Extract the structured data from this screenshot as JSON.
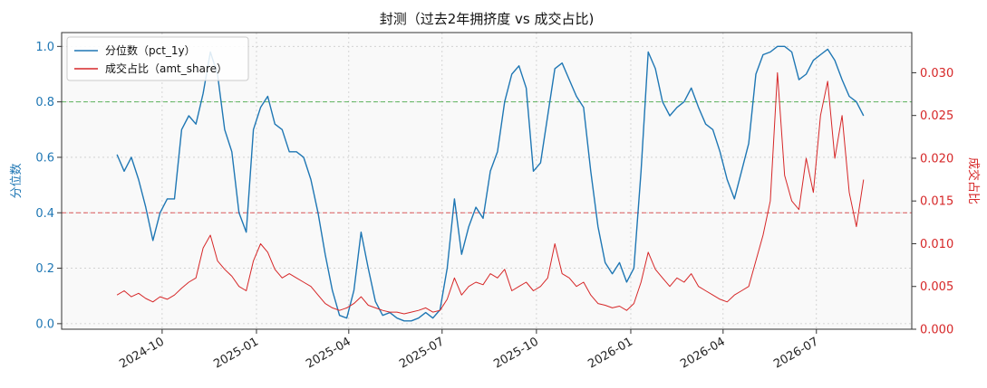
{
  "chart_data": {
    "type": "line",
    "title": "封测（过去2年拥挤度 vs 成交占比)",
    "ylabel": "分位数",
    "ylabel_right": "成交占比",
    "ylim": [
      -0.02,
      1.05
    ],
    "ylim_right": [
      0.0,
      0.0347
    ],
    "yticks": [
      0.0,
      0.2,
      0.4,
      0.6,
      0.8,
      1.0
    ],
    "yticks_right": [
      0.0,
      0.005,
      0.01,
      0.015,
      0.02,
      0.025,
      0.03
    ],
    "x_ticks": [
      "2024-10",
      "2025-01",
      "2025-04",
      "2025-07",
      "2025-10",
      "2026-01",
      "2026-04",
      "2026-07"
    ],
    "grid": true,
    "legend": "top-left",
    "hlines": [
      {
        "y": 0.8,
        "axis": "left",
        "color": "#2ca02c",
        "style": "dashed"
      },
      {
        "y": 0.4,
        "axis": "left",
        "color": "#d62728",
        "style": "dashed"
      }
    ],
    "colors": {
      "pct": "#1f77b4",
      "amt": "#d62728",
      "plot_bg": "#f9f9f9"
    },
    "series": [
      {
        "name": "分位数（pct_1y）",
        "axis": "left",
        "dates": [
          "2024-08-18",
          "2024-08-25",
          "2024-09-01",
          "2024-09-08",
          "2024-09-15",
          "2024-09-22",
          "2024-09-29",
          "2024-10-06",
          "2024-10-13",
          "2024-10-20",
          "2024-10-27",
          "2024-11-03",
          "2024-11-10",
          "2024-11-17",
          "2024-11-24",
          "2024-12-01",
          "2024-12-08",
          "2024-12-15",
          "2024-12-22",
          "2024-12-29",
          "2025-01-05",
          "2025-01-12",
          "2025-01-19",
          "2025-01-26",
          "2025-02-02",
          "2025-02-09",
          "2025-02-16",
          "2025-02-23",
          "2025-03-02",
          "2025-03-09",
          "2025-03-16",
          "2025-03-23",
          "2025-03-30",
          "2025-04-06",
          "2025-04-13",
          "2025-04-20",
          "2025-04-27",
          "2025-05-04",
          "2025-05-11",
          "2025-05-18",
          "2025-05-25",
          "2025-06-01",
          "2025-06-08",
          "2025-06-15",
          "2025-06-22",
          "2025-06-29",
          "2025-07-06",
          "2025-07-13",
          "2025-07-20",
          "2025-07-27",
          "2025-08-03",
          "2025-08-10",
          "2025-08-17",
          "2025-08-24",
          "2025-08-31",
          "2025-09-07",
          "2025-09-14",
          "2025-09-21",
          "2025-09-28",
          "2025-10-05",
          "2025-10-12",
          "2025-10-19",
          "2025-10-26",
          "2025-11-02",
          "2025-11-09",
          "2025-11-16",
          "2025-11-23",
          "2025-11-30",
          "2025-12-07",
          "2025-12-14",
          "2025-12-21",
          "2025-12-28",
          "2026-01-04",
          "2026-01-11",
          "2026-01-18",
          "2026-01-25",
          "2026-02-01",
          "2026-02-08",
          "2026-02-15",
          "2026-02-22",
          "2026-03-01",
          "2026-03-08",
          "2026-03-15",
          "2026-03-22",
          "2026-03-29",
          "2026-04-05",
          "2026-04-12",
          "2026-04-19",
          "2026-04-26",
          "2026-05-03",
          "2026-05-10",
          "2026-05-17",
          "2026-05-24",
          "2026-05-31",
          "2026-06-07",
          "2026-06-14",
          "2026-06-21",
          "2026-06-28",
          "2026-07-05",
          "2026-07-12",
          "2026-07-19",
          "2026-07-26",
          "2026-08-02",
          "2026-08-09",
          "2026-08-16"
        ],
        "values": [
          0.61,
          0.55,
          0.6,
          0.52,
          0.42,
          0.3,
          0.4,
          0.45,
          0.45,
          0.7,
          0.75,
          0.72,
          0.83,
          0.98,
          0.9,
          0.7,
          0.62,
          0.4,
          0.33,
          0.7,
          0.78,
          0.82,
          0.72,
          0.7,
          0.62,
          0.62,
          0.6,
          0.52,
          0.4,
          0.25,
          0.12,
          0.03,
          0.02,
          0.12,
          0.33,
          0.2,
          0.08,
          0.03,
          0.04,
          0.02,
          0.01,
          0.01,
          0.02,
          0.04,
          0.02,
          0.05,
          0.2,
          0.45,
          0.25,
          0.35,
          0.42,
          0.38,
          0.55,
          0.62,
          0.8,
          0.9,
          0.93,
          0.85,
          0.55,
          0.58,
          0.75,
          0.92,
          0.94,
          0.88,
          0.82,
          0.78,
          0.55,
          0.35,
          0.22,
          0.18,
          0.22,
          0.15,
          0.2,
          0.55,
          0.98,
          0.92,
          0.8,
          0.75,
          0.78,
          0.8,
          0.85,
          0.78,
          0.72,
          0.7,
          0.62,
          0.52,
          0.45,
          0.55,
          0.65,
          0.9,
          0.97,
          0.98,
          1.0,
          1.0,
          0.98,
          0.88,
          0.9,
          0.95,
          0.97,
          0.99,
          0.95,
          0.88,
          0.82,
          0.8,
          0.75
        ]
      },
      {
        "name": "成交占比（amt_share）",
        "axis": "right",
        "dates": [
          "2024-08-18",
          "2024-08-25",
          "2024-09-01",
          "2024-09-08",
          "2024-09-15",
          "2024-09-22",
          "2024-09-29",
          "2024-10-06",
          "2024-10-13",
          "2024-10-20",
          "2024-10-27",
          "2024-11-03",
          "2024-11-10",
          "2024-11-17",
          "2024-11-24",
          "2024-12-01",
          "2024-12-08",
          "2024-12-15",
          "2024-12-22",
          "2024-12-29",
          "2025-01-05",
          "2025-01-12",
          "2025-01-19",
          "2025-01-26",
          "2025-02-02",
          "2025-02-09",
          "2025-02-16",
          "2025-02-23",
          "2025-03-02",
          "2025-03-09",
          "2025-03-16",
          "2025-03-23",
          "2025-03-30",
          "2025-04-06",
          "2025-04-13",
          "2025-04-20",
          "2025-04-27",
          "2025-05-04",
          "2025-05-11",
          "2025-05-18",
          "2025-05-25",
          "2025-06-01",
          "2025-06-08",
          "2025-06-15",
          "2025-06-22",
          "2025-06-29",
          "2025-07-06",
          "2025-07-13",
          "2025-07-20",
          "2025-07-27",
          "2025-08-03",
          "2025-08-10",
          "2025-08-17",
          "2025-08-24",
          "2025-08-31",
          "2025-09-07",
          "2025-09-14",
          "2025-09-21",
          "2025-09-28",
          "2025-10-05",
          "2025-10-12",
          "2025-10-19",
          "2025-10-26",
          "2025-11-02",
          "2025-11-09",
          "2025-11-16",
          "2025-11-23",
          "2025-11-30",
          "2025-12-07",
          "2025-12-14",
          "2025-12-21",
          "2025-12-28",
          "2026-01-04",
          "2026-01-11",
          "2026-01-18",
          "2026-01-25",
          "2026-02-01",
          "2026-02-08",
          "2026-02-15",
          "2026-02-22",
          "2026-03-01",
          "2026-03-08",
          "2026-03-15",
          "2026-03-22",
          "2026-03-29",
          "2026-04-05",
          "2026-04-12",
          "2026-04-19",
          "2026-04-26",
          "2026-05-03",
          "2026-05-10",
          "2026-05-17",
          "2026-05-24",
          "2026-05-31",
          "2026-06-07",
          "2026-06-14",
          "2026-06-21",
          "2026-06-28",
          "2026-07-05",
          "2026-07-12",
          "2026-07-19",
          "2026-07-26",
          "2026-08-02",
          "2026-08-09",
          "2026-08-16"
        ],
        "values": [
          0.004,
          0.0045,
          0.0038,
          0.0042,
          0.0036,
          0.0032,
          0.0038,
          0.0035,
          0.004,
          0.0048,
          0.0055,
          0.006,
          0.0095,
          0.011,
          0.008,
          0.007,
          0.0062,
          0.005,
          0.0045,
          0.008,
          0.01,
          0.009,
          0.007,
          0.006,
          0.0065,
          0.006,
          0.0055,
          0.005,
          0.004,
          0.003,
          0.0025,
          0.0022,
          0.0025,
          0.003,
          0.0038,
          0.0028,
          0.0025,
          0.0022,
          0.002,
          0.002,
          0.0018,
          0.002,
          0.0022,
          0.0025,
          0.002,
          0.0022,
          0.0035,
          0.006,
          0.004,
          0.005,
          0.0055,
          0.0052,
          0.0065,
          0.006,
          0.007,
          0.0045,
          0.005,
          0.0055,
          0.0045,
          0.005,
          0.006,
          0.01,
          0.0065,
          0.006,
          0.005,
          0.0055,
          0.004,
          0.003,
          0.0028,
          0.0025,
          0.0027,
          0.0022,
          0.003,
          0.0055,
          0.009,
          0.007,
          0.006,
          0.005,
          0.006,
          0.0055,
          0.0065,
          0.005,
          0.0045,
          0.004,
          0.0035,
          0.0032,
          0.004,
          0.0045,
          0.005,
          0.008,
          0.011,
          0.015,
          0.03,
          0.018,
          0.015,
          0.014,
          0.02,
          0.016,
          0.025,
          0.029,
          0.02,
          0.025,
          0.016,
          0.012,
          0.0175
        ]
      }
    ]
  }
}
